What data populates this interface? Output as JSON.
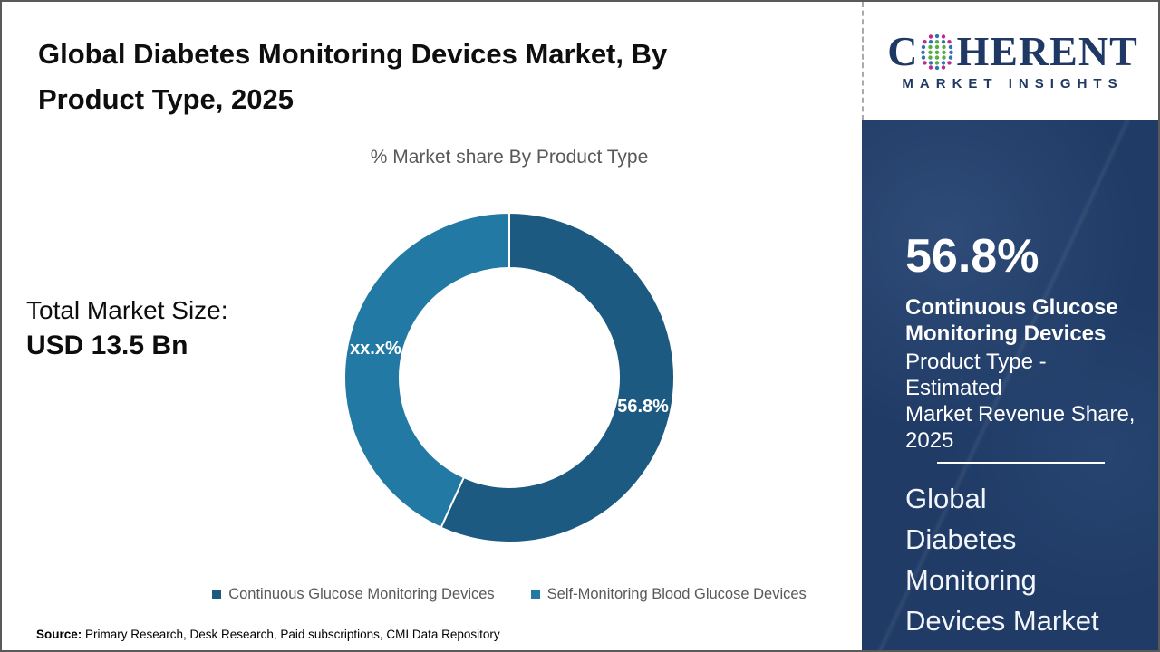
{
  "page": {
    "title_lines": [
      "Global Diabetes Monitoring Devices Market, By",
      "Product Type, 2025"
    ],
    "source_label": "Source:",
    "source_text": " Primary Research, Desk Research, Paid subscriptions, CMI Data Repository"
  },
  "logo": {
    "brand_first": "C",
    "brand_rest": "HERENT",
    "brand_sub": "MARKET INSIGHTS",
    "navy": "#1f3864"
  },
  "stats": {
    "total_label": "Total Market Size:",
    "total_value": "USD 13.5 Bn"
  },
  "chart_data": {
    "type": "pie",
    "donut": true,
    "title": "% Market share By Product Type",
    "categories": [
      "Continuous Glucose Monitoring Devices",
      "Self-Monitoring Blood Glucose Devices"
    ],
    "values": [
      56.8,
      43.2
    ],
    "slice_labels": [
      "56.8%",
      "xx.x%"
    ],
    "colors": [
      "#1d5a82",
      "#2279a4"
    ],
    "start_angle_deg": 0,
    "legend_position": "bottom"
  },
  "sidebar": {
    "headline": "56.8%",
    "subheading_lines": [
      "Continuous Glucose",
      "Monitoring Devices"
    ],
    "description_lines": [
      "Product Type - Estimated",
      "Market Revenue Share,",
      "2025"
    ],
    "market_name_lines": [
      "Global",
      "Diabetes",
      "Monitoring",
      "Devices Market"
    ],
    "panel_color": "#1f3b66"
  }
}
